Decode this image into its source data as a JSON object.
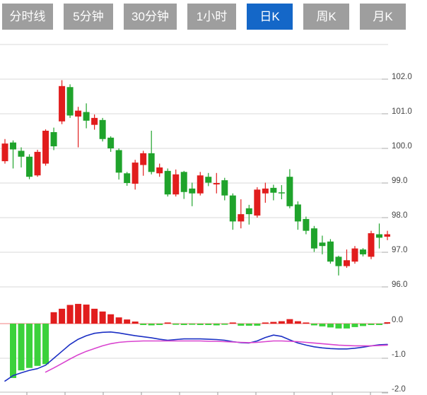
{
  "tabs": [
    {
      "label": "分时线",
      "active": false
    },
    {
      "label": "5分钟",
      "active": false
    },
    {
      "label": "30分钟",
      "active": false
    },
    {
      "label": "1小时",
      "active": false
    },
    {
      "label": "日K",
      "active": true
    },
    {
      "label": "周K",
      "active": false
    },
    {
      "label": "月K",
      "active": false
    }
  ],
  "colors": {
    "up": "#e11d1d",
    "down": "#1fa32b",
    "macd_up": "#e11d1d",
    "macd_down": "#3bd13b",
    "dif_line": "#1b2fc4",
    "dea_line": "#d943cf",
    "zero_line": "#f08080",
    "grid": "#d9d9d9",
    "axis_text": "#444444",
    "tab_bg": "#9e9e9e",
    "tab_active_bg": "#1467c8",
    "tab_text": "#ffffff"
  },
  "chart_data": {
    "type": "candlestick",
    "title": "",
    "price_axis": {
      "labels": [
        "102.0",
        "101.0",
        "100.0",
        "99.0",
        "98.0",
        "97.0",
        "96.0"
      ],
      "ylim": [
        95.9,
        103.0
      ],
      "grid": true,
      "position": "right"
    },
    "macd_axis": {
      "labels": [
        "0.0",
        "-1.0",
        "-2.0"
      ],
      "ylim": [
        -2.1,
        0.7
      ],
      "position": "right"
    },
    "candles": [
      {
        "o": 99.63,
        "h": 100.27,
        "l": 99.56,
        "c": 100.14
      },
      {
        "o": 100.17,
        "h": 100.23,
        "l": 99.42,
        "c": 99.97
      },
      {
        "o": 99.93,
        "h": 100.03,
        "l": 99.45,
        "c": 99.76
      },
      {
        "o": 99.76,
        "h": 99.83,
        "l": 99.11,
        "c": 99.18
      },
      {
        "o": 99.22,
        "h": 99.96,
        "l": 99.18,
        "c": 99.9
      },
      {
        "o": 99.56,
        "h": 100.55,
        "l": 99.5,
        "c": 100.51
      },
      {
        "o": 100.47,
        "h": 100.6,
        "l": 99.95,
        "c": 100.06
      },
      {
        "o": 100.78,
        "h": 101.97,
        "l": 100.7,
        "c": 101.8
      },
      {
        "o": 101.77,
        "h": 101.85,
        "l": 100.88,
        "c": 100.95
      },
      {
        "o": 100.92,
        "h": 101.2,
        "l": 100.03,
        "c": 101.09
      },
      {
        "o": 101.05,
        "h": 101.3,
        "l": 100.58,
        "c": 100.8
      },
      {
        "o": 100.68,
        "h": 100.98,
        "l": 100.54,
        "c": 100.88
      },
      {
        "o": 100.82,
        "h": 100.88,
        "l": 100.2,
        "c": 100.27
      },
      {
        "o": 100.31,
        "h": 100.35,
        "l": 99.9,
        "c": 100.0
      },
      {
        "o": 99.95,
        "h": 100.0,
        "l": 99.1,
        "c": 99.3
      },
      {
        "o": 99.28,
        "h": 99.32,
        "l": 98.92,
        "c": 99.0
      },
      {
        "o": 98.98,
        "h": 99.67,
        "l": 98.81,
        "c": 99.59
      },
      {
        "o": 99.52,
        "h": 99.93,
        "l": 99.21,
        "c": 99.86
      },
      {
        "o": 99.86,
        "h": 100.51,
        "l": 99.25,
        "c": 99.32
      },
      {
        "o": 99.28,
        "h": 99.56,
        "l": 99.18,
        "c": 99.45
      },
      {
        "o": 99.35,
        "h": 99.42,
        "l": 98.61,
        "c": 98.67
      },
      {
        "o": 98.67,
        "h": 99.39,
        "l": 98.61,
        "c": 99.25
      },
      {
        "o": 99.32,
        "h": 99.35,
        "l": 98.54,
        "c": 98.74
      },
      {
        "o": 98.84,
        "h": 99.01,
        "l": 98.33,
        "c": 98.7
      },
      {
        "o": 98.7,
        "h": 99.32,
        "l": 98.64,
        "c": 99.22
      },
      {
        "o": 99.18,
        "h": 99.29,
        "l": 98.91,
        "c": 99.01
      },
      {
        "o": 98.96,
        "h": 99.29,
        "l": 98.7,
        "c": 99.0
      },
      {
        "o": 99.08,
        "h": 99.15,
        "l": 98.5,
        "c": 98.64
      },
      {
        "o": 98.64,
        "h": 98.7,
        "l": 97.65,
        "c": 97.89
      },
      {
        "o": 97.89,
        "h": 98.53,
        "l": 97.69,
        "c": 98.1
      },
      {
        "o": 98.27,
        "h": 98.37,
        "l": 97.8,
        "c": 98.1
      },
      {
        "o": 98.06,
        "h": 98.88,
        "l": 98.0,
        "c": 98.81
      },
      {
        "o": 98.7,
        "h": 99.01,
        "l": 98.43,
        "c": 98.84
      },
      {
        "o": 98.86,
        "h": 98.95,
        "l": 98.5,
        "c": 98.72
      },
      {
        "o": 98.73,
        "h": 98.94,
        "l": 98.53,
        "c": 98.7
      },
      {
        "o": 99.18,
        "h": 99.4,
        "l": 98.27,
        "c": 98.33
      },
      {
        "o": 98.38,
        "h": 98.47,
        "l": 97.65,
        "c": 97.89
      },
      {
        "o": 97.96,
        "h": 98.03,
        "l": 97.52,
        "c": 97.62
      },
      {
        "o": 97.69,
        "h": 97.76,
        "l": 97.01,
        "c": 97.11
      },
      {
        "o": 97.28,
        "h": 97.48,
        "l": 96.94,
        "c": 97.18
      },
      {
        "o": 97.31,
        "h": 97.38,
        "l": 96.67,
        "c": 96.73
      },
      {
        "o": 96.87,
        "h": 96.9,
        "l": 96.33,
        "c": 96.6
      },
      {
        "o": 96.6,
        "h": 97.08,
        "l": 96.55,
        "c": 96.77
      },
      {
        "o": 96.73,
        "h": 97.18,
        "l": 96.67,
        "c": 97.11
      },
      {
        "o": 97.08,
        "h": 97.12,
        "l": 96.88,
        "c": 96.94
      },
      {
        "o": 96.87,
        "h": 97.62,
        "l": 96.8,
        "c": 97.55
      },
      {
        "o": 97.52,
        "h": 97.83,
        "l": 97.11,
        "c": 97.42
      },
      {
        "o": 97.45,
        "h": 97.62,
        "l": 97.35,
        "c": 97.52
      }
    ],
    "macd": {
      "hist": [
        null,
        -1.57,
        -1.35,
        -1.28,
        -1.22,
        -1.17,
        0.33,
        0.43,
        0.54,
        0.57,
        0.55,
        0.43,
        0.35,
        0.27,
        0.18,
        0.12,
        0.06,
        -0.04,
        -0.05,
        -0.04,
        0.02,
        -0.03,
        -0.04,
        -0.03,
        -0.04,
        -0.04,
        -0.05,
        -0.03,
        0.03,
        -0.06,
        -0.06,
        -0.06,
        0.02,
        0.05,
        0.07,
        0.13,
        0.07,
        0.03,
        -0.05,
        -0.08,
        -0.11,
        -0.14,
        -0.14,
        -0.1,
        -0.07,
        -0.04,
        -0.04,
        0.04
      ],
      "dif": [
        -1.66,
        -1.5,
        -1.42,
        -1.35,
        -1.3,
        -1.2,
        -1.0,
        -0.8,
        -0.6,
        -0.45,
        -0.35,
        -0.28,
        -0.25,
        -0.24,
        -0.27,
        -0.31,
        -0.35,
        -0.38,
        -0.41,
        -0.45,
        -0.48,
        -0.46,
        -0.44,
        -0.44,
        -0.44,
        -0.45,
        -0.46,
        -0.48,
        -0.52,
        -0.55,
        -0.56,
        -0.5,
        -0.4,
        -0.33,
        -0.37,
        -0.47,
        -0.56,
        -0.62,
        -0.67,
        -0.7,
        -0.72,
        -0.73,
        -0.73,
        -0.71,
        -0.68,
        -0.64,
        -0.61,
        -0.6
      ],
      "dea": [
        null,
        null,
        null,
        null,
        null,
        -1.4,
        -1.28,
        -1.15,
        -1.02,
        -0.9,
        -0.8,
        -0.72,
        -0.64,
        -0.58,
        -0.54,
        -0.52,
        -0.51,
        -0.5,
        -0.5,
        -0.5,
        -0.5,
        -0.5,
        -0.5,
        -0.5,
        -0.5,
        -0.51,
        -0.51,
        -0.52,
        -0.53,
        -0.54,
        -0.55,
        -0.54,
        -0.52,
        -0.5,
        -0.5,
        -0.51,
        -0.52,
        -0.54,
        -0.56,
        -0.58,
        -0.6,
        -0.62,
        -0.63,
        -0.64,
        -0.64,
        -0.64,
        -0.63,
        -0.62
      ]
    },
    "layout": {
      "grid_on": true,
      "x_tick_count": 10,
      "legend": "none"
    }
  }
}
